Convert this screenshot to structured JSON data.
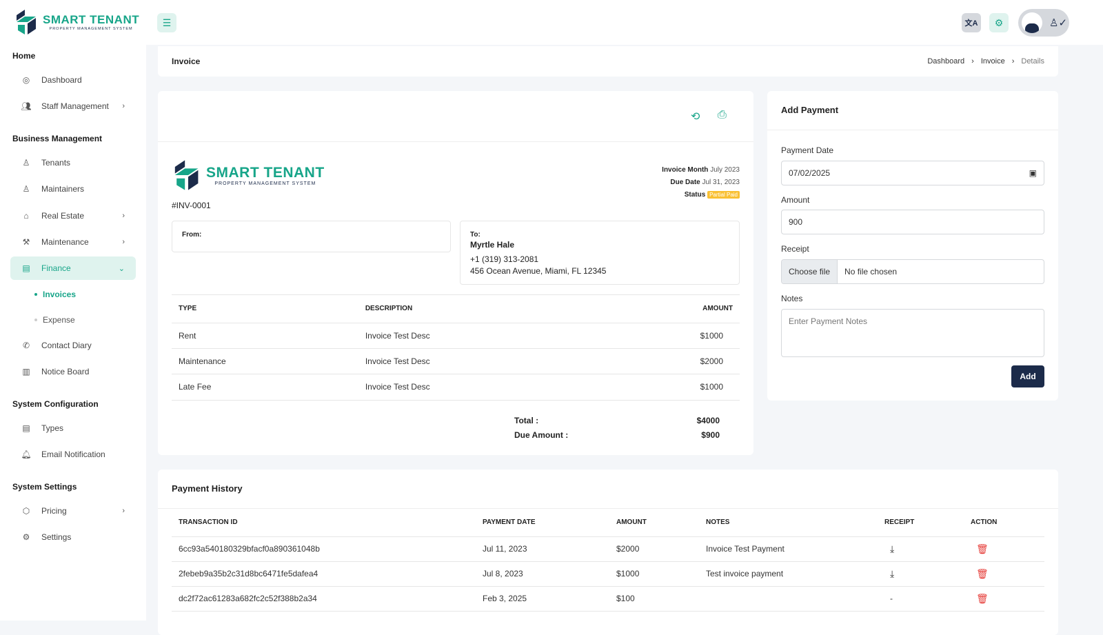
{
  "brand": {
    "name": "SMART TENANT",
    "tagline": "PROPERTY MANAGEMENT SYSTEM"
  },
  "sidebar": {
    "sections": [
      {
        "title": "Home",
        "items": [
          {
            "label": "Dashboard",
            "icon": "dashboard-icon"
          },
          {
            "label": "Staff Management",
            "icon": "users-icon",
            "chevron": true
          }
        ]
      },
      {
        "title": "Business Management",
        "items": [
          {
            "label": "Tenants",
            "icon": "user-icon"
          },
          {
            "label": "Maintainers",
            "icon": "user-check-icon"
          },
          {
            "label": "Real Estate",
            "icon": "home-icon",
            "chevron": true
          },
          {
            "label": "Maintenance",
            "icon": "tool-icon",
            "chevron": true
          },
          {
            "label": "Finance",
            "icon": "file-icon",
            "chevron": true,
            "active": true
          },
          {
            "label": "Contact Diary",
            "icon": "phone-icon"
          },
          {
            "label": "Notice Board",
            "icon": "notebook-icon"
          }
        ]
      },
      {
        "title": "System Configuration",
        "items": [
          {
            "label": "Types",
            "icon": "file-text-icon"
          },
          {
            "label": "Email Notification",
            "icon": "bell-icon"
          }
        ]
      },
      {
        "title": "System Settings",
        "items": [
          {
            "label": "Pricing",
            "icon": "package-icon",
            "chevron": true
          },
          {
            "label": "Settings",
            "icon": "gear-icon"
          }
        ]
      }
    ],
    "finance_sub": [
      "Invoices",
      "Expense"
    ]
  },
  "header": {
    "page_title": "Invoice",
    "breadcrumb": [
      "Dashboard",
      "Invoice",
      "Details"
    ]
  },
  "invoice": {
    "number": "#INV-0001",
    "month_label": "Invoice Month",
    "month": "July 2023",
    "due_label": "Due Date",
    "due": "Jul 31, 2023",
    "status_label": "Status",
    "status": "Partial Paid",
    "status_color": "#f9c033",
    "from_label": "From:",
    "to_label": "To:",
    "to_name": "Myrtle Hale",
    "to_phone": "+1 (319) 313-2081",
    "to_address": "456 Ocean Avenue, Miami, FL 12345",
    "columns": [
      "TYPE",
      "DESCRIPTION",
      "AMOUNT"
    ],
    "rows": [
      [
        "Rent",
        "Invoice Test Desc",
        "$1000"
      ],
      [
        "Maintenance",
        "Invoice Test Desc",
        "$2000"
      ],
      [
        "Late Fee",
        "Invoice Test Desc",
        "$1000"
      ]
    ],
    "total_label": "Total :",
    "total": "$4000",
    "due_amount_label": "Due Amount :",
    "due_amount": "$900"
  },
  "payment": {
    "title": "Add Payment",
    "date_label": "Payment Date",
    "date": "07/02/2025",
    "amount_label": "Amount",
    "amount": "900",
    "receipt_label": "Receipt",
    "choose_file": "Choose file",
    "no_file": "No file chosen",
    "notes_label": "Notes",
    "notes_placeholder": "Enter Payment Notes",
    "add": "Add"
  },
  "history": {
    "title": "Payment History",
    "columns": [
      "TRANSACTION ID",
      "PAYMENT DATE",
      "AMOUNT",
      "NOTES",
      "RECEIPT",
      "ACTION"
    ],
    "rows": [
      {
        "id": "6cc93a540180329bfacf0a890361048b",
        "date": "Jul 11, 2023",
        "amount": "$2000",
        "notes": "Invoice Test Payment",
        "receipt": "download"
      },
      {
        "id": "2febeb9a35b2c31d8bc6471fe5dafea4",
        "date": "Jul 8, 2023",
        "amount": "$1000",
        "notes": "Test invoice payment",
        "receipt": "download"
      },
      {
        "id": "dc2f72ac61283a682fc2c52f388b2a34",
        "date": "Feb 3, 2025",
        "amount": "$100",
        "notes": "",
        "receipt": "-"
      }
    ]
  },
  "colors": {
    "accent": "#17a589",
    "navy": "#1c2b4a",
    "danger": "#e53935"
  }
}
